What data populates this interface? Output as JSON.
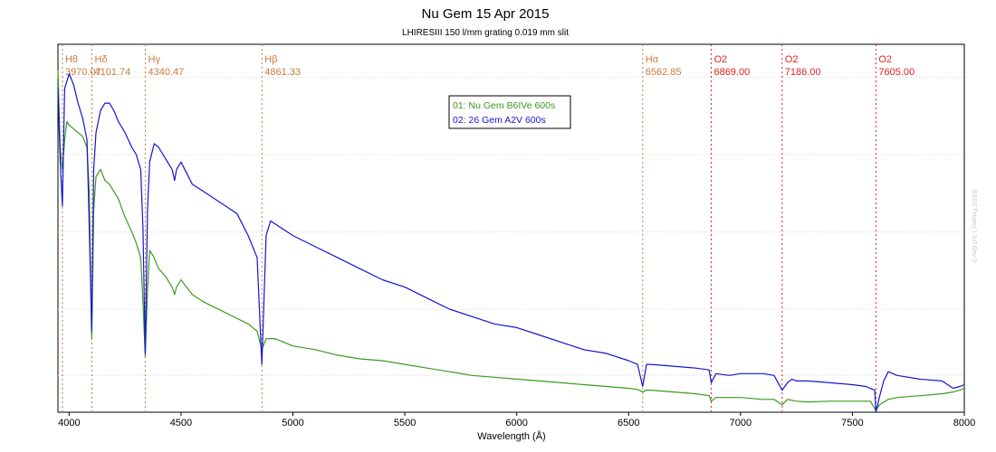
{
  "chart_data": {
    "type": "line",
    "title": "Nu Gem  15 Apr 2015",
    "subtitle": "LHIRESIII   150 l/mm grating   0.019 mm slit",
    "xlabel": "Wavelength (Å)",
    "ylabel": "",
    "xlim": [
      3950,
      8000
    ],
    "ylim": [
      0,
      1
    ],
    "x_ticks": [
      4000,
      4500,
      5000,
      5500,
      6000,
      6500,
      7000,
      7500,
      8000
    ],
    "grid": true,
    "legend_position": "top-center",
    "watermark": "BASS Project 1.9.0 Rev 0",
    "line_markers": [
      {
        "name": "Hθ",
        "wavelength": 3970.07,
        "label": "3970.07",
        "color": "#c97a3c"
      },
      {
        "name": "Hδ",
        "wavelength": 4101.74,
        "label": "4101.74",
        "color": "#c97a3c"
      },
      {
        "name": "Hγ",
        "wavelength": 4340.47,
        "label": "4340.47",
        "color": "#c97a3c"
      },
      {
        "name": "Hβ",
        "wavelength": 4861.33,
        "label": "4861.33",
        "color": "#c97a3c"
      },
      {
        "name": "Hα",
        "wavelength": 6562.85,
        "label": "6562.85",
        "color": "#c97a3c"
      },
      {
        "name": "O2",
        "wavelength": 6869.0,
        "label": "6869.00",
        "color": "#e02020"
      },
      {
        "name": "O2",
        "wavelength": 7186.0,
        "label": "7186.00",
        "color": "#e02020"
      },
      {
        "name": "O2",
        "wavelength": 7605.0,
        "label": "7605.00",
        "color": "#e02020"
      }
    ],
    "series": [
      {
        "name": "01: Nu Gem  B6IVe  600s",
        "color": "#3a9a1e",
        "x": [
          3950,
          3960,
          3970,
          3980,
          3990,
          4000,
          4020,
          4040,
          4060,
          4080,
          4090,
          4101,
          4110,
          4120,
          4140,
          4160,
          4180,
          4200,
          4220,
          4250,
          4280,
          4300,
          4320,
          4330,
          4340,
          4350,
          4360,
          4380,
          4400,
          4430,
          4460,
          4471,
          4480,
          4500,
          4550,
          4600,
          4700,
          4800,
          4840,
          4861,
          4880,
          4920,
          5000,
          5100,
          5200,
          5300,
          5400,
          5500,
          5600,
          5700,
          5800,
          5900,
          6000,
          6100,
          6200,
          6300,
          6400,
          6500,
          6540,
          6563,
          6580,
          6600,
          6700,
          6800,
          6860,
          6869,
          6890,
          6950,
          7000,
          7100,
          7150,
          7186,
          7210,
          7250,
          7300,
          7400,
          7500,
          7580,
          7600,
          7605,
          7620,
          7660,
          7700,
          7800,
          7900,
          7950,
          7980,
          8000
        ],
        "y": [
          0.93,
          0.72,
          0.66,
          0.74,
          0.79,
          0.78,
          0.77,
          0.76,
          0.75,
          0.72,
          0.6,
          0.2,
          0.55,
          0.64,
          0.66,
          0.63,
          0.62,
          0.6,
          0.58,
          0.53,
          0.49,
          0.46,
          0.42,
          0.3,
          0.15,
          0.33,
          0.44,
          0.42,
          0.39,
          0.37,
          0.34,
          0.32,
          0.34,
          0.36,
          0.32,
          0.3,
          0.27,
          0.24,
          0.22,
          0.17,
          0.2,
          0.2,
          0.18,
          0.17,
          0.155,
          0.145,
          0.14,
          0.13,
          0.12,
          0.11,
          0.1,
          0.095,
          0.09,
          0.085,
          0.08,
          0.075,
          0.07,
          0.065,
          0.062,
          0.055,
          0.06,
          0.06,
          0.055,
          0.05,
          0.045,
          0.03,
          0.04,
          0.04,
          0.04,
          0.035,
          0.035,
          0.02,
          0.035,
          0.03,
          0.028,
          0.03,
          0.03,
          0.03,
          0.01,
          0.005,
          0.02,
          0.035,
          0.04,
          0.045,
          0.05,
          0.055,
          0.06,
          0.065
        ]
      },
      {
        "name": "02: 26 Gem  A2V  600s",
        "color": "#1414d2",
        "x": [
          3950,
          3960,
          3970,
          3980,
          3990,
          4000,
          4020,
          4040,
          4060,
          4080,
          4090,
          4101,
          4110,
          4120,
          4140,
          4160,
          4180,
          4200,
          4220,
          4250,
          4280,
          4300,
          4320,
          4330,
          4340,
          4350,
          4360,
          4380,
          4400,
          4430,
          4460,
          4471,
          4480,
          4500,
          4550,
          4600,
          4700,
          4750,
          4800,
          4840,
          4861,
          4880,
          4900,
          4950,
          5000,
          5100,
          5200,
          5300,
          5400,
          5500,
          5600,
          5700,
          5800,
          5900,
          6000,
          6100,
          6200,
          6300,
          6400,
          6500,
          6540,
          6563,
          6580,
          6600,
          6700,
          6800,
          6860,
          6869,
          6890,
          6950,
          7000,
          7100,
          7150,
          7186,
          7210,
          7230,
          7250,
          7300,
          7400,
          7500,
          7560,
          7600,
          7605,
          7620,
          7640,
          7660,
          7700,
          7800,
          7900,
          7950,
          7980,
          8000
        ],
        "y": [
          0.88,
          0.68,
          0.56,
          0.88,
          0.9,
          0.92,
          0.89,
          0.84,
          0.8,
          0.74,
          0.5,
          0.22,
          0.66,
          0.76,
          0.82,
          0.84,
          0.84,
          0.82,
          0.79,
          0.76,
          0.72,
          0.7,
          0.66,
          0.5,
          0.16,
          0.55,
          0.68,
          0.73,
          0.72,
          0.69,
          0.66,
          0.63,
          0.66,
          0.68,
          0.62,
          0.6,
          0.56,
          0.54,
          0.48,
          0.42,
          0.13,
          0.48,
          0.52,
          0.5,
          0.48,
          0.45,
          0.42,
          0.39,
          0.36,
          0.34,
          0.31,
          0.28,
          0.26,
          0.24,
          0.23,
          0.21,
          0.19,
          0.17,
          0.16,
          0.14,
          0.13,
          0.07,
          0.13,
          0.13,
          0.125,
          0.12,
          0.115,
          0.08,
          0.105,
          0.1,
          0.105,
          0.105,
          0.1,
          0.06,
          0.08,
          0.09,
          0.085,
          0.085,
          0.08,
          0.075,
          0.07,
          0.06,
          0.0,
          0.04,
          0.085,
          0.11,
          0.1,
          0.09,
          0.085,
          0.065,
          0.07,
          0.075
        ]
      }
    ]
  }
}
